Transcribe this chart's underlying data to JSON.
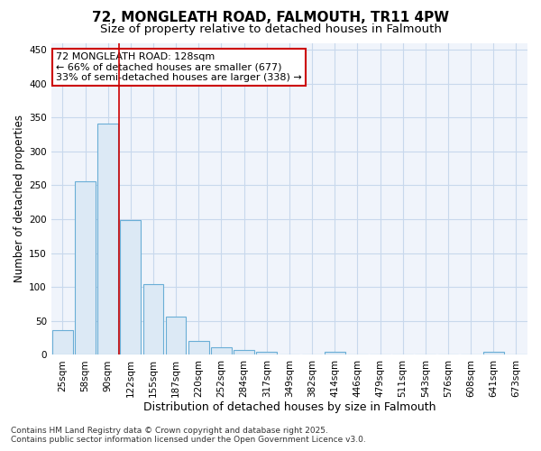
{
  "title": "72, MONGLEATH ROAD, FALMOUTH, TR11 4PW",
  "subtitle": "Size of property relative to detached houses in Falmouth",
  "xlabel": "Distribution of detached houses by size in Falmouth",
  "ylabel": "Number of detached properties",
  "bar_values": [
    36,
    256,
    341,
    199,
    104,
    56,
    21,
    11,
    7,
    4,
    0,
    0,
    4,
    0,
    0,
    0,
    0,
    0,
    0,
    4,
    0
  ],
  "categories": [
    "25sqm",
    "58sqm",
    "90sqm",
    "122sqm",
    "155sqm",
    "187sqm",
    "220sqm",
    "252sqm",
    "284sqm",
    "317sqm",
    "349sqm",
    "382sqm",
    "414sqm",
    "446sqm",
    "479sqm",
    "511sqm",
    "543sqm",
    "576sqm",
    "608sqm",
    "641sqm",
    "673sqm"
  ],
  "bar_color": "#dce9f5",
  "bar_edge_color": "#6aaed6",
  "grid_color": "#c8d8ec",
  "background_color": "#ffffff",
  "plot_bg_color": "#f0f4fb",
  "vline_color": "#cc0000",
  "vline_x_index": 3,
  "annotation_text": "72 MONGLEATH ROAD: 128sqm\n← 66% of detached houses are smaller (677)\n33% of semi-detached houses are larger (338) →",
  "annotation_box_color": "#ffffff",
  "annotation_box_edge": "#cc0000",
  "ylim": [
    0,
    460
  ],
  "yticks": [
    0,
    50,
    100,
    150,
    200,
    250,
    300,
    350,
    400,
    450
  ],
  "footnote": "Contains HM Land Registry data © Crown copyright and database right 2025.\nContains public sector information licensed under the Open Government Licence v3.0.",
  "title_fontsize": 11,
  "subtitle_fontsize": 9.5,
  "xlabel_fontsize": 9,
  "ylabel_fontsize": 8.5,
  "tick_fontsize": 7.5,
  "annotation_fontsize": 8,
  "footnote_fontsize": 6.5
}
